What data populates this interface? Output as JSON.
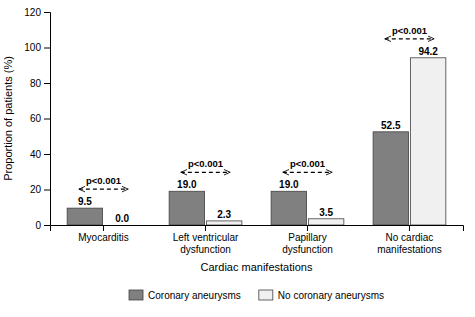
{
  "chart_data": {
    "type": "bar",
    "categories": [
      "Myocarditis",
      "Left ventricular\ndysfunction",
      "Papillary\ndysfunction",
      "No cardiac\nmanifestations"
    ],
    "series": [
      {
        "name": "Coronary aneurysms",
        "color": "#808080",
        "values": [
          9.5,
          19.0,
          19.0,
          52.5
        ],
        "value_labels": [
          "9.5",
          "19.0",
          "19.0",
          "52.5"
        ]
      },
      {
        "name": "No coronary aneurysms",
        "color": "#f0f0f0",
        "values": [
          0.0,
          2.3,
          3.5,
          94.2
        ],
        "value_labels": [
          "0.0",
          "2.3",
          "3.5",
          "94.2"
        ]
      }
    ],
    "xlabel": "Cardiac manifestations",
    "ylabel": "Proportion of patients (%)",
    "ylim": [
      0,
      120
    ],
    "yticks": [
      0,
      20,
      40,
      60,
      80,
      100,
      120
    ],
    "annotations": [
      "p<0.001",
      "p<0.001",
      "p<0.001",
      "p<0.001"
    ],
    "data_labels": true,
    "grid": false,
    "legend": "bottom"
  }
}
